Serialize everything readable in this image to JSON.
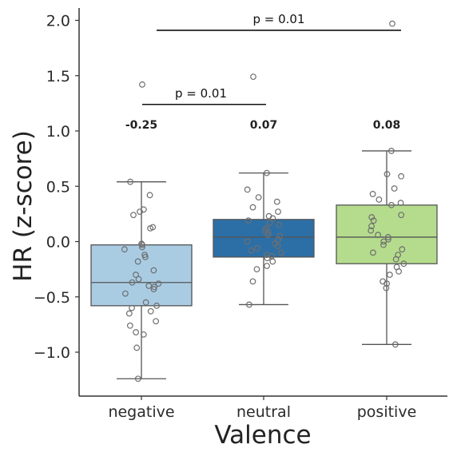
{
  "chart_data": {
    "type": "box",
    "xlabel": "Valence",
    "ylabel": "HR (z-score)",
    "ylim": [
      -1.4,
      2.1
    ],
    "yticks": [
      {
        "value": 2.0,
        "label": "2.0"
      },
      {
        "value": 1.5,
        "label": "1.5"
      },
      {
        "value": 1.0,
        "label": "1.0"
      },
      {
        "value": 0.5,
        "label": "0.5"
      },
      {
        "value": 0.0,
        "label": "0.0"
      },
      {
        "value": -0.5,
        "label": "−0.5"
      },
      {
        "value": -1.0,
        "label": "−1.0"
      }
    ],
    "grid": false,
    "categories": [
      "negative",
      "neutral",
      "positive"
    ],
    "groups": [
      {
        "name": "negative",
        "color": "#a9cce3",
        "whisker_low": -1.24,
        "q1": -0.58,
        "median": -0.37,
        "q3": -0.03,
        "whisker_high": 0.54,
        "mean_label": "-0.25",
        "outliers": [
          1.42
        ],
        "points": [
          0.54,
          0.42,
          0.29,
          0.27,
          0.24,
          0.13,
          0.12,
          -0.02,
          -0.03,
          -0.05,
          -0.07,
          -0.12,
          -0.14,
          -0.18,
          -0.26,
          -0.3,
          -0.34,
          -0.37,
          -0.38,
          -0.4,
          -0.41,
          -0.43,
          -0.47,
          -0.55,
          -0.58,
          -0.6,
          -0.63,
          -0.65,
          -0.72,
          -0.76,
          -0.82,
          -0.84,
          -0.96,
          -1.24
        ]
      },
      {
        "name": "neutral",
        "color": "#2c6fa7",
        "whisker_low": -0.57,
        "q1": -0.14,
        "median": 0.04,
        "q3": 0.2,
        "whisker_high": 0.62,
        "mean_label": "0.07",
        "outliers": [
          1.49
        ],
        "points": [
          0.62,
          0.47,
          0.4,
          0.36,
          0.31,
          0.27,
          0.23,
          0.21,
          0.19,
          0.17,
          0.15,
          0.12,
          0.1,
          0.08,
          0.06,
          0.05,
          0.02,
          0.0,
          -0.02,
          -0.04,
          -0.06,
          -0.08,
          -0.1,
          -0.12,
          -0.13,
          -0.15,
          -0.18,
          -0.22,
          -0.25,
          -0.36,
          -0.57
        ]
      },
      {
        "name": "positive",
        "color": "#b5dc8d",
        "whisker_low": -0.93,
        "q1": -0.2,
        "median": 0.04,
        "q3": 0.33,
        "whisker_high": 0.82,
        "mean_label": "0.08",
        "outliers": [
          1.97
        ],
        "points": [
          0.82,
          0.61,
          0.59,
          0.48,
          0.43,
          0.38,
          0.35,
          0.33,
          0.24,
          0.22,
          0.19,
          0.14,
          0.1,
          0.06,
          0.04,
          0.02,
          0.0,
          -0.03,
          -0.07,
          -0.1,
          -0.12,
          -0.16,
          -0.2,
          -0.23,
          -0.27,
          -0.3,
          -0.36,
          -0.38,
          -0.42,
          -0.93
        ]
      }
    ],
    "significance": [
      {
        "from": "negative",
        "to": "neutral",
        "y": 1.24,
        "label": "p = 0.01"
      },
      {
        "from": "negative",
        "to": "positive",
        "y": 1.91,
        "label": "p = 0.01"
      }
    ]
  }
}
